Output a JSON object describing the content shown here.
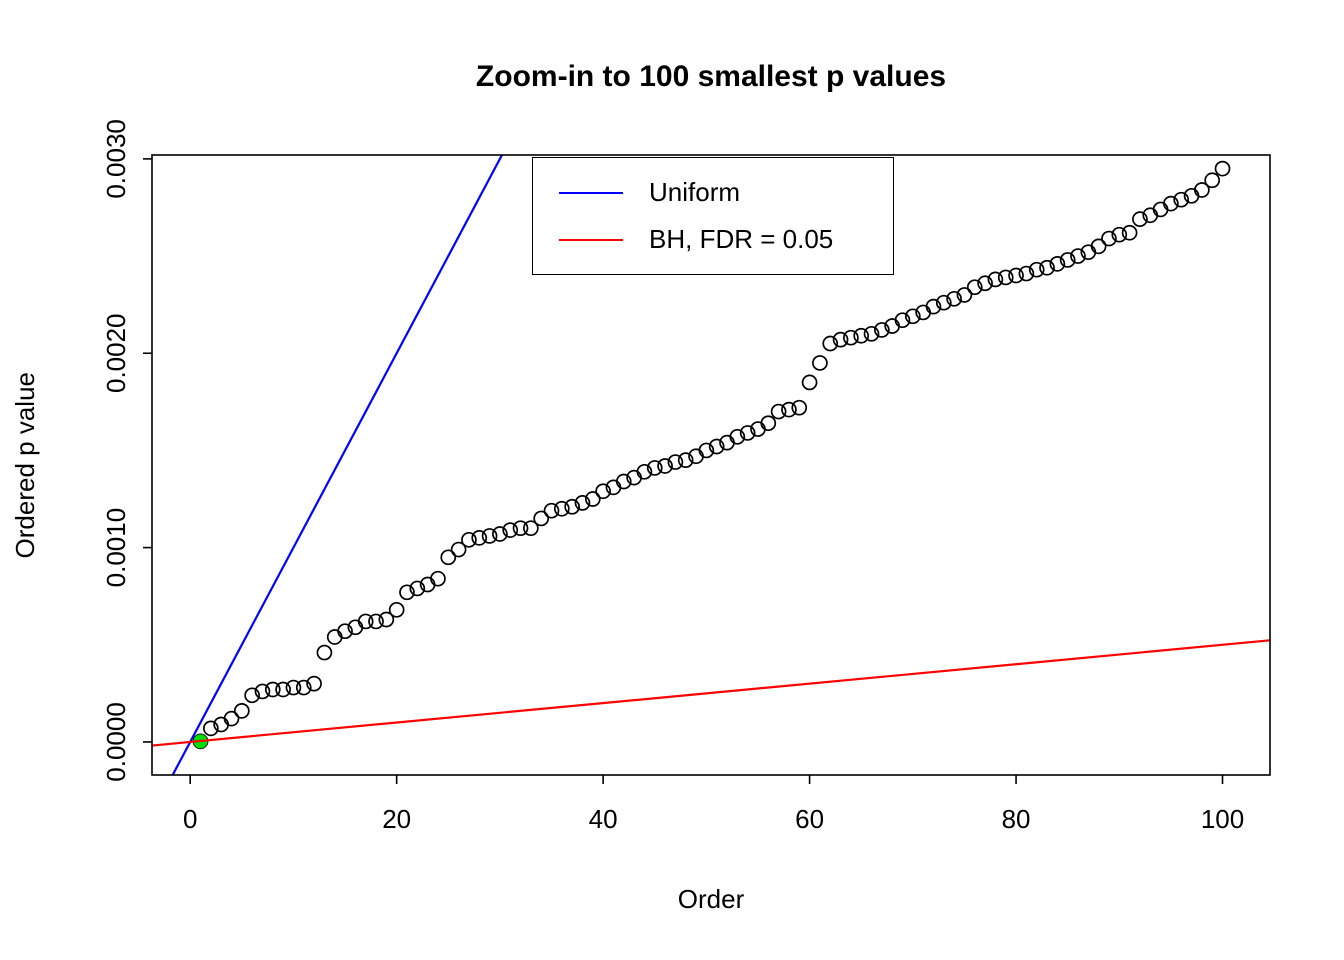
{
  "page": {
    "background": "#ffffff"
  },
  "chart_data": {
    "type": "scatter",
    "title": "Zoom-in to 100 smallest p values",
    "xlabel": "Order",
    "ylabel": "Ordered p value",
    "xlim": [
      -3.7,
      104.6
    ],
    "ylim": [
      -0.00017,
      0.00302
    ],
    "x_ticks": [
      0,
      20,
      40,
      60,
      80,
      100
    ],
    "x_tick_labels": [
      "0",
      "20",
      "40",
      "60",
      "80",
      "100"
    ],
    "y_ticks": [
      0.0,
      0.001,
      0.002,
      0.003
    ],
    "y_tick_labels": [
      "0.0000",
      "0.0010",
      "0.0020",
      "0.0030"
    ],
    "grid": false,
    "frame": true,
    "legend": {
      "position": "top-center",
      "entries": [
        {
          "label": "Uniform",
          "color": "#0000ff",
          "type": "line"
        },
        {
          "label": "BH, FDR = 0.05",
          "color": "#ff0000",
          "type": "line"
        }
      ]
    },
    "series": [
      {
        "name": "ordered_p_values",
        "type": "scatter",
        "marker": "open-circle",
        "color": "#000000",
        "x": [
          1,
          2,
          3,
          4,
          5,
          6,
          7,
          8,
          9,
          10,
          11,
          12,
          13,
          14,
          15,
          16,
          17,
          18,
          19,
          20,
          21,
          22,
          23,
          24,
          25,
          26,
          27,
          28,
          29,
          30,
          31,
          32,
          33,
          34,
          35,
          36,
          37,
          38,
          39,
          40,
          41,
          42,
          43,
          44,
          45,
          46,
          47,
          48,
          49,
          50,
          51,
          52,
          53,
          54,
          55,
          56,
          57,
          58,
          59,
          60,
          61,
          62,
          63,
          64,
          65,
          66,
          67,
          68,
          69,
          70,
          71,
          72,
          73,
          74,
          75,
          76,
          77,
          78,
          79,
          80,
          81,
          82,
          83,
          84,
          85,
          86,
          87,
          88,
          89,
          90,
          91,
          92,
          93,
          94,
          95,
          96,
          97,
          98,
          99,
          100
        ],
        "y": [
          3e-06,
          7e-05,
          9e-05,
          0.00012,
          0.00016,
          0.00024,
          0.00026,
          0.00027,
          0.00027,
          0.00028,
          0.00028,
          0.0003,
          0.00046,
          0.00054,
          0.00057,
          0.00059,
          0.00062,
          0.00062,
          0.00063,
          0.00068,
          0.00077,
          0.00079,
          0.00081,
          0.00084,
          0.00095,
          0.00099,
          0.00104,
          0.00105,
          0.00106,
          0.00107,
          0.00109,
          0.0011,
          0.0011,
          0.00115,
          0.00119,
          0.0012,
          0.00121,
          0.00123,
          0.00125,
          0.00129,
          0.00131,
          0.00134,
          0.00136,
          0.00139,
          0.00141,
          0.00142,
          0.00144,
          0.00145,
          0.00147,
          0.0015,
          0.00152,
          0.00154,
          0.00157,
          0.00159,
          0.00161,
          0.00164,
          0.0017,
          0.00171,
          0.00172,
          0.00185,
          0.00195,
          0.00205,
          0.00207,
          0.00208,
          0.00209,
          0.0021,
          0.00212,
          0.00214,
          0.00217,
          0.00219,
          0.00221,
          0.00224,
          0.00226,
          0.00228,
          0.0023,
          0.00234,
          0.00236,
          0.00238,
          0.00239,
          0.0024,
          0.00241,
          0.00243,
          0.00244,
          0.00246,
          0.00248,
          0.0025,
          0.00252,
          0.00255,
          0.00259,
          0.00261,
          0.00262,
          0.00269,
          0.00271,
          0.00274,
          0.00277,
          0.00279,
          0.00281,
          0.00284,
          0.00289,
          0.00295
        ]
      },
      {
        "name": "first_significant_point",
        "type": "scatter",
        "marker": "filled-circle",
        "color": "#00dd00",
        "x": [
          1
        ],
        "y": [
          3e-06
        ]
      },
      {
        "name": "uniform_line",
        "label": "Uniform",
        "type": "abline",
        "color": "#0000ff",
        "slope": 0.0001,
        "intercept": 0
      },
      {
        "name": "bh_line",
        "label": "BH, FDR = 0.05",
        "type": "abline",
        "color": "#ff0000",
        "slope": 5e-06,
        "intercept": 0
      }
    ]
  }
}
